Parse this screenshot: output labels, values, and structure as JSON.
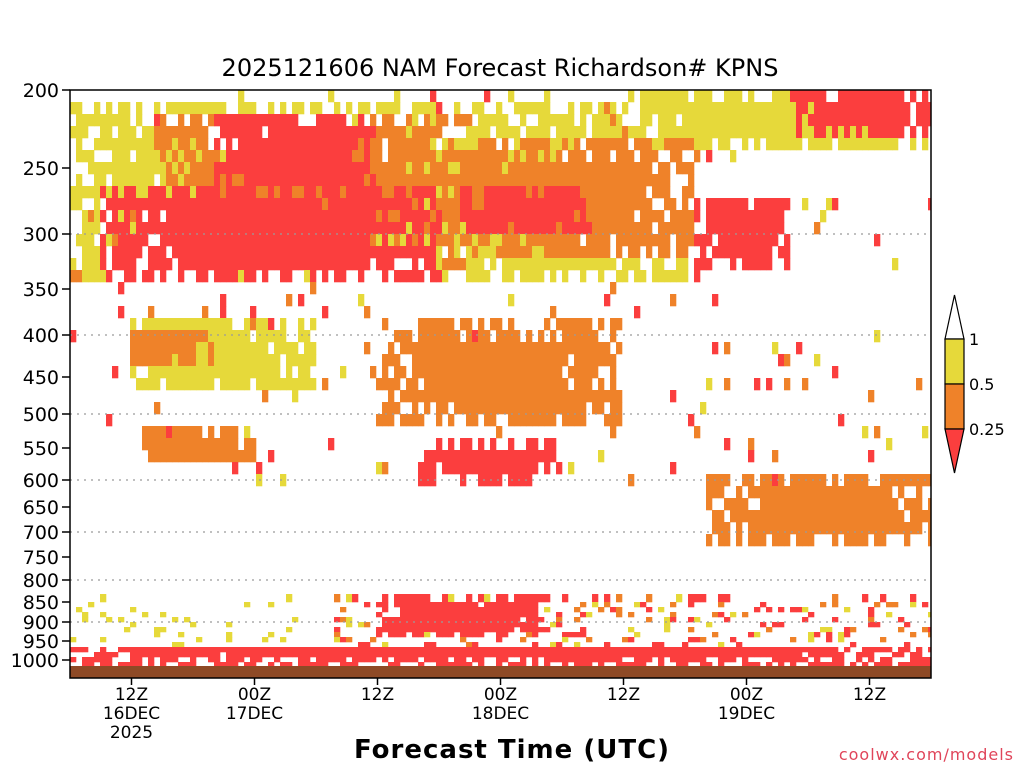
{
  "chart_data": {
    "type": "heatmap",
    "title": "2025121606 NAM Forecast Richardson# KPNS",
    "xlabel": "Forecast Time (UTC)",
    "watermark": "coolwx.com/models",
    "y_axis": {
      "scale": "pressure (nonlinear)",
      "range": [
        1000,
        200
      ],
      "tick_labels": [
        "200",
        "250",
        "300",
        "350",
        "400",
        "450",
        "500",
        "550",
        "600",
        "650",
        "700",
        "750",
        "800",
        "850",
        "900",
        "950",
        "1000"
      ],
      "gridlines": "dotted at 300, 400, 500, 600, 700, 800, 900"
    },
    "x_axis": {
      "range": [
        "2025-12-16 06Z",
        "2025-12-19 18Z"
      ],
      "ticks": [
        {
          "time": "16DEC 12Z",
          "lines": [
            "12Z",
            "16DEC",
            "2025"
          ]
        },
        {
          "time": "17DEC 00Z",
          "lines": [
            "00Z",
            "17DEC"
          ]
        },
        {
          "time": "17DEC 12Z",
          "lines": [
            "12Z"
          ]
        },
        {
          "time": "18DEC 00Z",
          "lines": [
            "00Z",
            "18DEC"
          ]
        },
        {
          "time": "18DEC 12Z",
          "lines": [
            "12Z"
          ]
        },
        {
          "time": "19DEC 00Z",
          "lines": [
            "00Z",
            "19DEC"
          ]
        },
        {
          "time": "19DEC 12Z",
          "lines": [
            "12Z"
          ]
        }
      ]
    },
    "colorbar": {
      "labels": [
        "1",
        "0.5",
        "0.25"
      ],
      "bins": [
        {
          "range": "> 1",
          "color": "#ffffff"
        },
        {
          "range": "0.5 - 1",
          "color": "#e6d93a"
        },
        {
          "range": "0.25 - 0.5",
          "color": "#ef8229"
        },
        {
          "range": "< 0.25",
          "color": "#fb3e3e"
        }
      ]
    },
    "colors": {
      "yellow": "#e6d93a",
      "orange": "#ef8229",
      "red": "#fb3e3e",
      "ground": "#8e4a26",
      "grid": "#9a9a9a"
    },
    "regions": [
      {
        "x": [
          "16DEC 09Z",
          "17DEC 18Z"
        ],
        "p": [
          265,
          340
        ],
        "level": "red"
      },
      {
        "x": [
          "16DEC 20Z",
          "17DEC 12Z"
        ],
        "p": [
          215,
          270
        ],
        "level": "red"
      },
      {
        "x": [
          "16DEC 14Z",
          "17DEC 21Z"
        ],
        "p": [
          215,
          330
        ],
        "level": "orange"
      },
      {
        "x": [
          "16DEC 03Z",
          "18DEC 18Z"
        ],
        "p": [
          210,
          345
        ],
        "level": "yellow"
      },
      {
        "x": [
          "17DEC 20Z",
          "18DEC 09Z"
        ],
        "p": [
          265,
          300
        ],
        "level": "red"
      },
      {
        "x": [
          "17DEC 15Z",
          "18DEC 19Z"
        ],
        "p": [
          230,
          320
        ],
        "level": "orange"
      },
      {
        "x": [
          "18DEC 19Z",
          "19DEC 04Z"
        ],
        "p": [
          270,
          330
        ],
        "level": "red"
      },
      {
        "x": [
          "19DEC 04Z",
          "19DEC 18Z"
        ],
        "p": [
          200,
          230
        ],
        "level": "red"
      },
      {
        "x": [
          "18DEC 12Z",
          "19DEC 18Z"
        ],
        "p": [
          200,
          240
        ],
        "level": "yellow"
      },
      {
        "x": [
          "16DEC 12Z",
          "17DEC 06Z"
        ],
        "p": [
          380,
          470
        ],
        "level": "yellow"
      },
      {
        "x": [
          "16DEC 12Z",
          "16DEC 20Z"
        ],
        "p": [
          390,
          440
        ],
        "level": "orange"
      },
      {
        "x": [
          "16DEC 13Z",
          "17DEC 00Z"
        ],
        "p": [
          520,
          580
        ],
        "level": "orange"
      },
      {
        "x": [
          "17DEC 16Z",
          "18DEC 06Z"
        ],
        "p": [
          540,
          600
        ],
        "level": "red"
      },
      {
        "x": [
          "17DEC 12Z",
          "18DEC 12Z"
        ],
        "p": [
          380,
          520
        ],
        "level": "orange"
      },
      {
        "x": [
          "18DEC 20Z",
          "19DEC 18Z"
        ],
        "p": [
          590,
          720
        ],
        "level": "orange"
      },
      {
        "x": [
          "16DEC 06Z",
          "19DEC 18Z"
        ],
        "p": [
          960,
          1000
        ],
        "level": "red"
      },
      {
        "x": [
          "17DEC 12Z",
          "18DEC 04Z"
        ],
        "p": [
          840,
          940
        ],
        "level": "red"
      }
    ]
  }
}
